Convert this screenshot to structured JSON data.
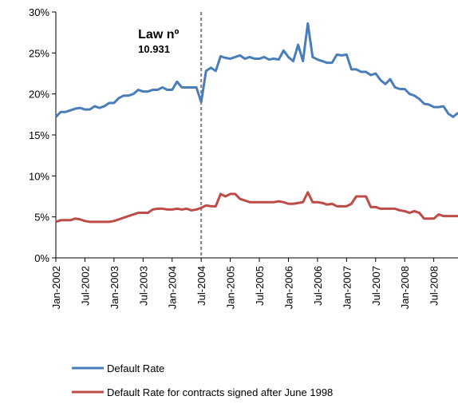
{
  "chart_data": {
    "type": "line",
    "categories": [
      "Jan-2002",
      null,
      null,
      null,
      null,
      null,
      "Jul-2002",
      null,
      null,
      null,
      null,
      null,
      "Jan-2003",
      null,
      null,
      null,
      null,
      null,
      "Jul-2003",
      null,
      null,
      null,
      null,
      null,
      "Jan-2004",
      null,
      null,
      null,
      null,
      null,
      "Jul-2004",
      null,
      null,
      null,
      null,
      null,
      "Jan-2005",
      null,
      null,
      null,
      null,
      null,
      "Jul-2005",
      null,
      null,
      null,
      null,
      null,
      "Jan-2006",
      null,
      null,
      null,
      null,
      null,
      "Jul-2006",
      null,
      null,
      null,
      null,
      null,
      "Jan-2007",
      null,
      null,
      null,
      null,
      null,
      "Jul-2007",
      null,
      null,
      null,
      null,
      null,
      "Jan-2008",
      null,
      null,
      null,
      null,
      null,
      "Jul-2008",
      null,
      null,
      null,
      null,
      null
    ],
    "series": [
      {
        "name": "Default Rate",
        "color": "#4a7ebb",
        "values": [
          17.2,
          17.8,
          17.8,
          18.0,
          18.2,
          18.3,
          18.1,
          18.1,
          18.5,
          18.3,
          18.5,
          18.9,
          18.9,
          19.5,
          19.8,
          19.8,
          20.0,
          20.5,
          20.3,
          20.3,
          20.5,
          20.5,
          20.8,
          20.5,
          20.5,
          21.5,
          20.8,
          20.8,
          20.8,
          20.8,
          19.0,
          22.8,
          23.2,
          22.8,
          24.6,
          24.4,
          24.3,
          24.5,
          24.7,
          24.3,
          24.5,
          24.3,
          24.3,
          24.5,
          24.2,
          24.3,
          24.2,
          25.3,
          24.5,
          24.0,
          26.0,
          24.0,
          28.6,
          24.5,
          24.2,
          24.0,
          23.8,
          23.8,
          24.8,
          24.7,
          24.8,
          23.0,
          23.0,
          22.7,
          22.7,
          22.3,
          22.5,
          21.7,
          21.2,
          21.8,
          20.8,
          20.6,
          20.6,
          20.0,
          19.8,
          19.4,
          18.8,
          18.7,
          18.4,
          18.4,
          18.5,
          17.6,
          17.2,
          17.7
        ]
      },
      {
        "name": "Default Rate for contracts signed after June 1998",
        "color": "#be4b48",
        "values": [
          4.4,
          4.6,
          4.6,
          4.6,
          4.8,
          4.7,
          4.5,
          4.4,
          4.4,
          4.4,
          4.4,
          4.4,
          4.5,
          4.7,
          4.9,
          5.1,
          5.3,
          5.5,
          5.5,
          5.5,
          5.9,
          6.0,
          6.0,
          5.9,
          5.9,
          6.0,
          5.9,
          6.0,
          5.8,
          5.9,
          6.1,
          6.4,
          6.3,
          6.3,
          7.8,
          7.5,
          7.8,
          7.8,
          7.2,
          7.0,
          6.8,
          6.8,
          6.8,
          6.8,
          6.8,
          6.8,
          6.9,
          6.8,
          6.6,
          6.6,
          6.7,
          6.8,
          8.0,
          6.8,
          6.8,
          6.7,
          6.5,
          6.6,
          6.3,
          6.3,
          6.3,
          6.6,
          7.5,
          7.5,
          7.5,
          6.2,
          6.2,
          6.0,
          6.0,
          6.0,
          6.0,
          5.8,
          5.7,
          5.5,
          5.7,
          5.5,
          4.8,
          4.8,
          4.8,
          5.3,
          5.1,
          5.1,
          5.1,
          5.1
        ]
      }
    ],
    "ylim": [
      0,
      30
    ],
    "yticks": [
      {
        "value": 0,
        "label": "0%"
      },
      {
        "value": 5,
        "label": "5%"
      },
      {
        "value": 10,
        "label": "10%"
      },
      {
        "value": 15,
        "label": "15%"
      },
      {
        "value": 20,
        "label": "20%"
      },
      {
        "value": 25,
        "label": "25%"
      },
      {
        "value": 30,
        "label": "30%"
      }
    ],
    "annotation": {
      "category": "Jul-2004",
      "lines": [
        "Law nº",
        "10.931"
      ]
    },
    "legend": "bottom",
    "grid": false
  }
}
